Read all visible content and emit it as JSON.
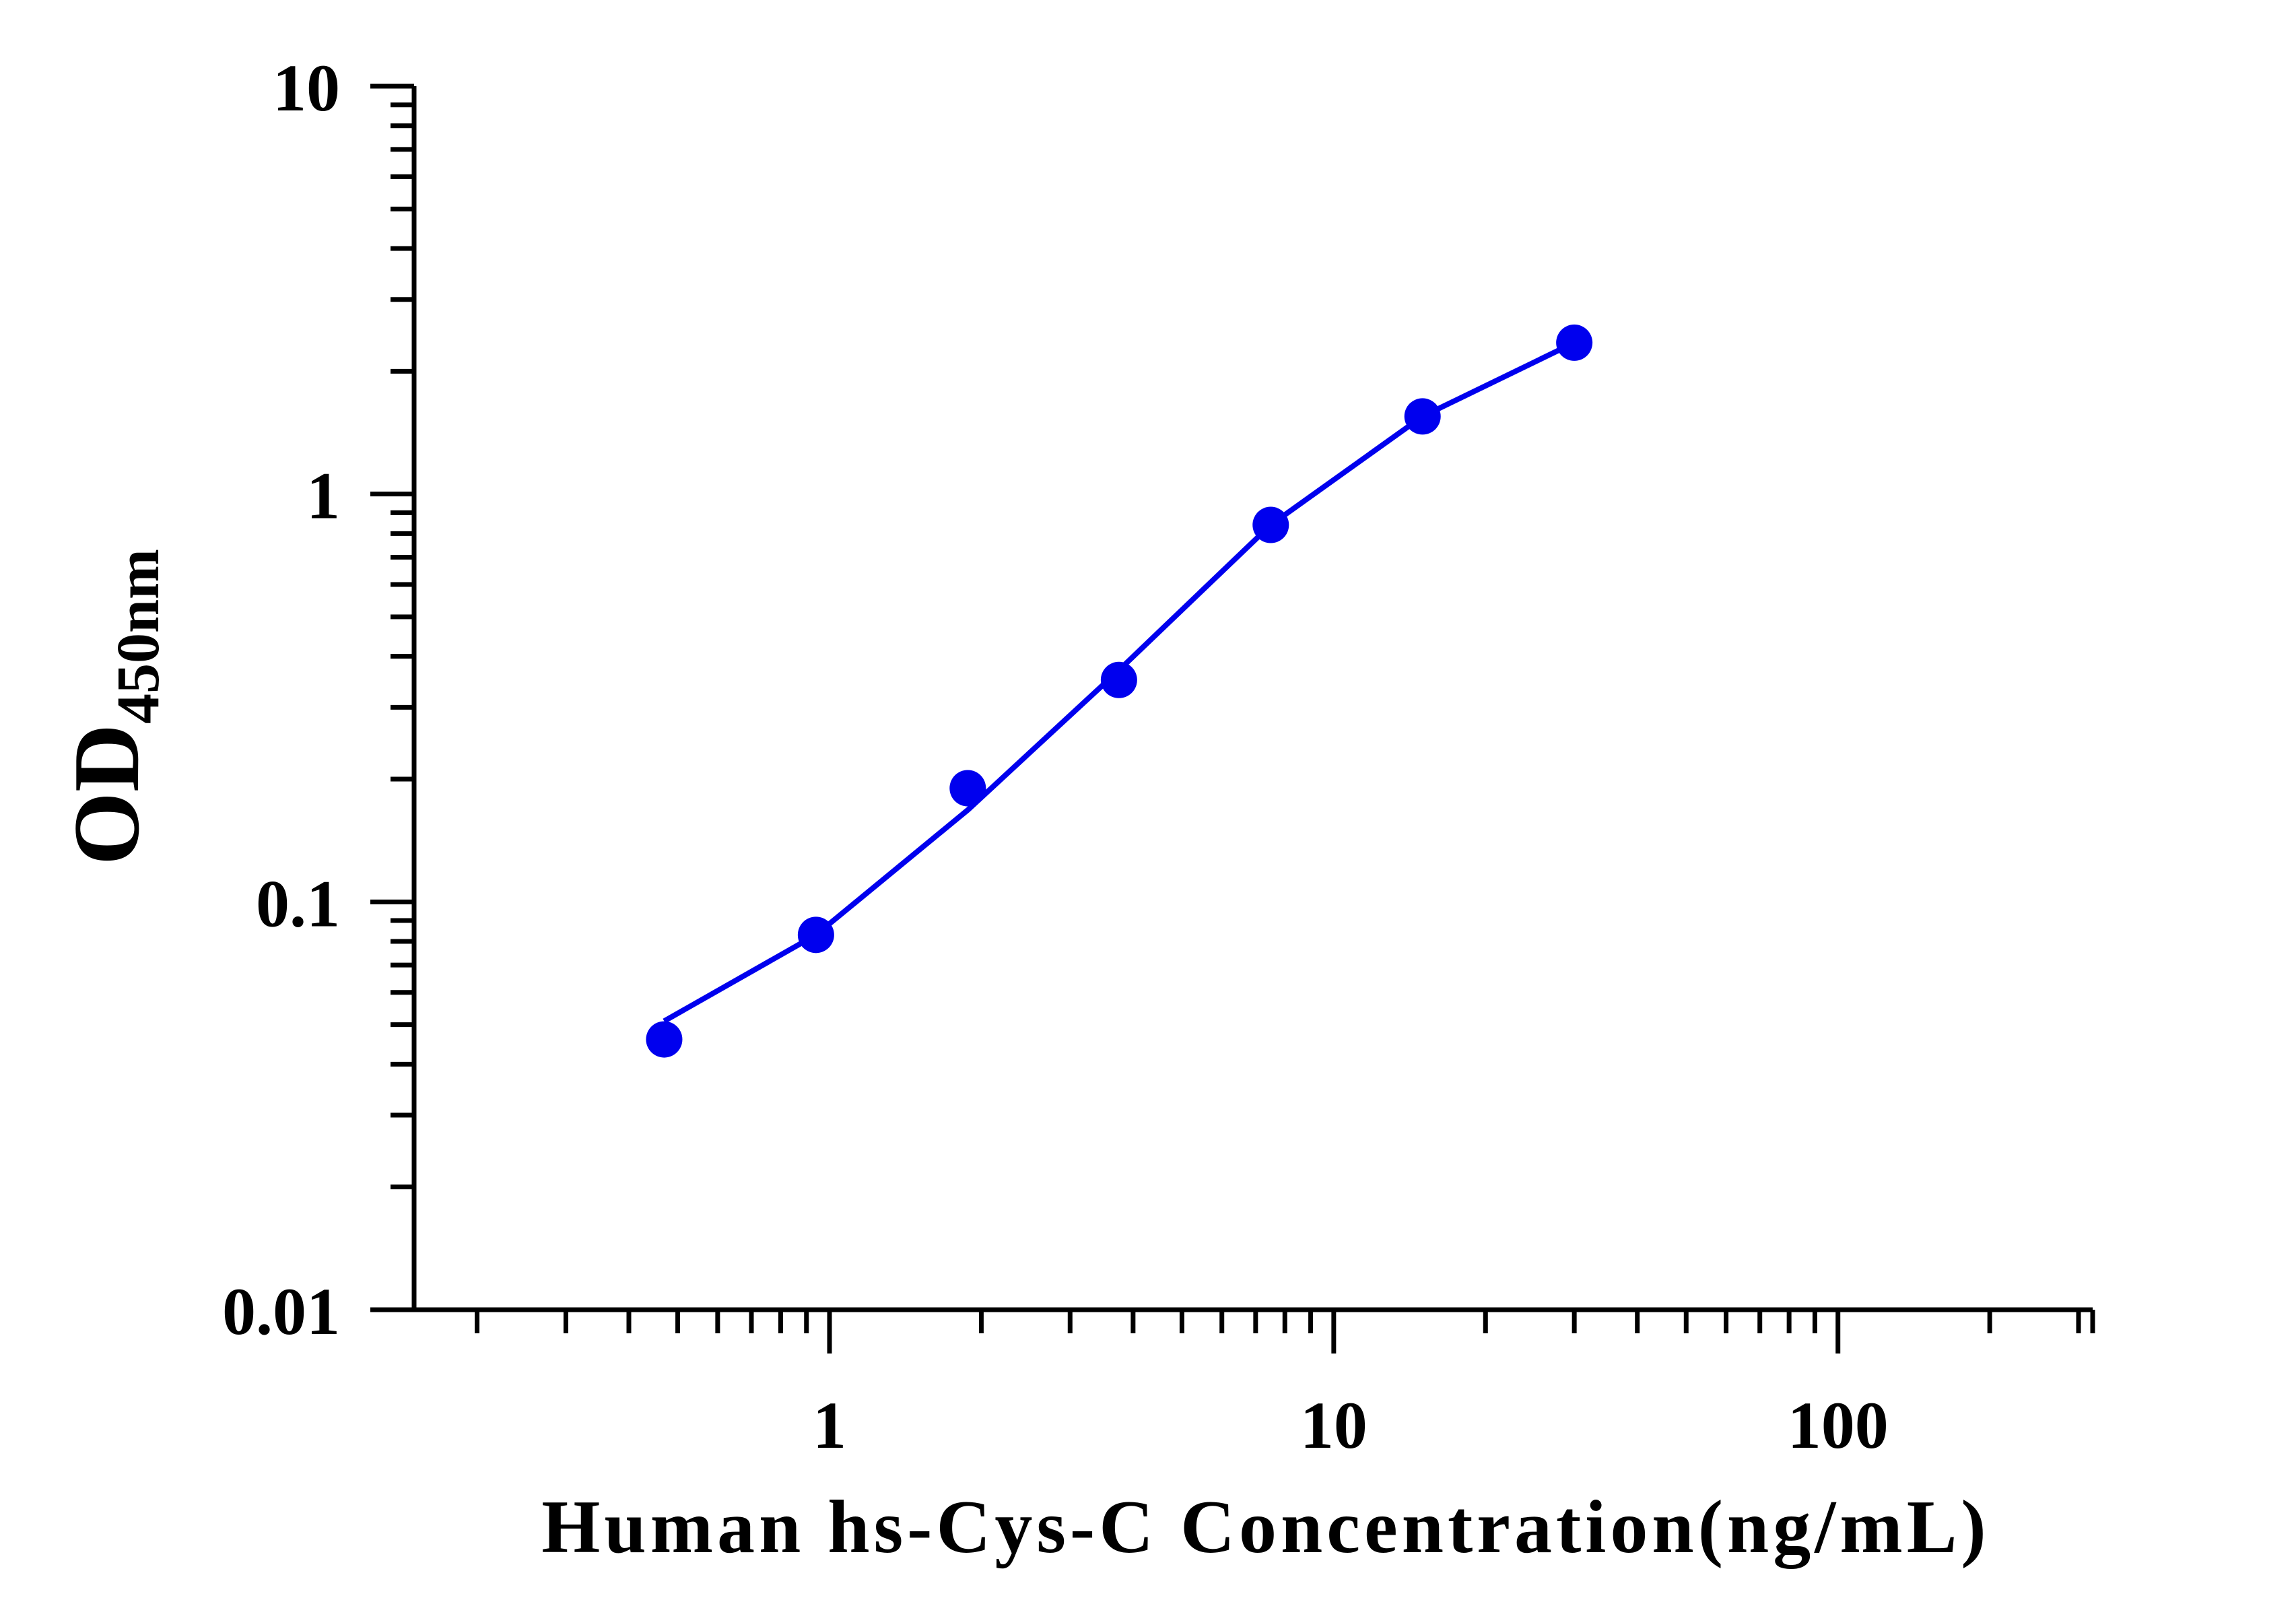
{
  "chart_data": {
    "type": "scatter",
    "xscale": "log",
    "yscale": "log",
    "xlim": [
      0.15,
      320
    ],
    "ylim": [
      0.01,
      10
    ],
    "x_ticks": [
      {
        "value": 1,
        "label": "1"
      },
      {
        "value": 10,
        "label": "10"
      },
      {
        "value": 100,
        "label": "100"
      }
    ],
    "y_ticks": [
      {
        "value": 0.01,
        "label": "0.01"
      },
      {
        "value": 0.1,
        "label": "0.1"
      },
      {
        "value": 1,
        "label": "1"
      },
      {
        "value": 10,
        "label": "10"
      }
    ],
    "xlabel": "Human hs-Cys-C Concentration(ng/mL)",
    "ylabel_main": "OD",
    "ylabel_sub": "450nm",
    "grid": false,
    "legend": "none",
    "series": [
      {
        "color": "#0000ee",
        "points": [
          {
            "x": 0.47,
            "y": 0.046
          },
          {
            "x": 0.94,
            "y": 0.083
          },
          {
            "x": 1.88,
            "y": 0.19
          },
          {
            "x": 3.75,
            "y": 0.35
          },
          {
            "x": 7.5,
            "y": 0.84
          },
          {
            "x": 15,
            "y": 1.55
          },
          {
            "x": 30,
            "y": 2.35
          }
        ],
        "fit_curve": [
          {
            "x": 0.47,
            "y": 0.051
          },
          {
            "x": 0.94,
            "y": 0.083
          },
          {
            "x": 1.88,
            "y": 0.168
          },
          {
            "x": 3.75,
            "y": 0.37
          },
          {
            "x": 7.5,
            "y": 0.84
          },
          {
            "x": 15,
            "y": 1.55
          },
          {
            "x": 30,
            "y": 2.35
          }
        ]
      }
    ]
  }
}
